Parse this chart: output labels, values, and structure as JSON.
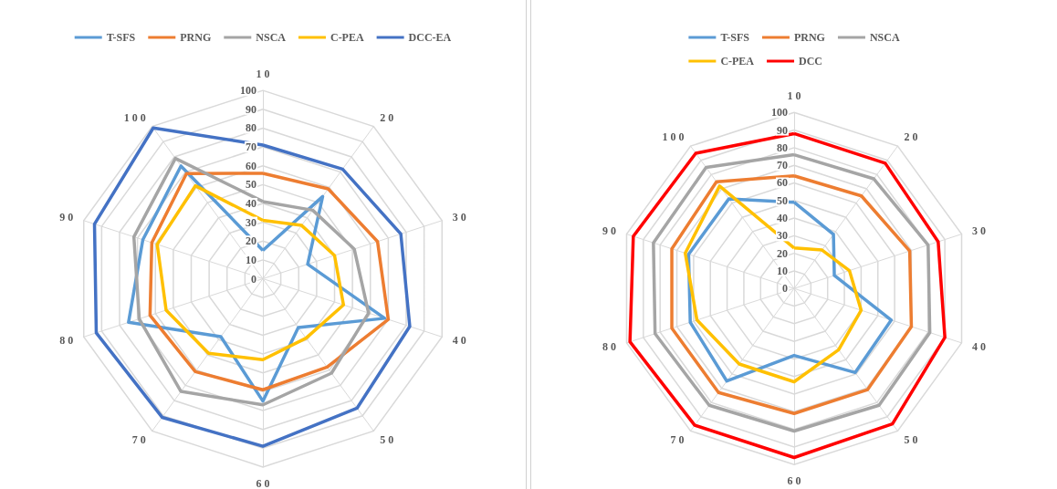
{
  "chart_data": [
    {
      "type": "radar",
      "categories": [
        "1 0",
        "2 0",
        "3 0",
        "4 0",
        "5 0",
        "6 0",
        "7 0",
        "8 0",
        "9 0",
        "1 0 0"
      ],
      "ylim": [
        0,
        100
      ],
      "yticks": [
        0,
        10,
        20,
        30,
        40,
        50,
        60,
        70,
        80,
        90,
        100
      ],
      "grid": true,
      "legend": "top",
      "marker": "none",
      "series": [
        {
          "name": "T-SFS",
          "color": "#5b9bd5",
          "values": [
            15,
            54,
            25,
            68,
            32,
            65,
            38,
            75,
            67,
            74
          ]
        },
        {
          "name": "PRNG",
          "color": "#ed7d31",
          "values": [
            56,
            59,
            64,
            70,
            58,
            59,
            61,
            63,
            62,
            69
          ]
        },
        {
          "name": "NSCA",
          "color": "#a5a5a5",
          "values": [
            41,
            45,
            51,
            59,
            62,
            67,
            74,
            69,
            72,
            79
          ]
        },
        {
          "name": "C-PEA",
          "color": "#ffc000",
          "values": [
            31,
            35,
            40,
            45,
            39,
            43,
            49,
            54,
            59,
            61
          ]
        },
        {
          "name": "DCC-EA",
          "color": "#4472c4",
          "values": [
            71,
            72,
            77,
            82,
            85,
            89,
            91,
            93,
            94,
            99
          ]
        }
      ]
    },
    {
      "type": "radar",
      "categories": [
        "1 0",
        "2 0",
        "3 0",
        "4 0",
        "5 0",
        "6 0",
        "7 0",
        "8 0",
        "9 0",
        "1 0 0"
      ],
      "ylim": [
        0,
        100
      ],
      "yticks": [
        0,
        10,
        20,
        30,
        40,
        50,
        60,
        70,
        80,
        90,
        100
      ],
      "grid": true,
      "legend": "top",
      "marker": "none",
      "series": [
        {
          "name": "T-SFS",
          "color": "#5b9bd5",
          "values": [
            49,
            38,
            24,
            58,
            59,
            38,
            65,
            62,
            63,
            63
          ]
        },
        {
          "name": "PRNG",
          "color": "#ed7d31",
          "values": [
            64,
            65,
            69,
            70,
            71,
            71,
            73,
            73,
            73,
            75
          ]
        },
        {
          "name": "NSCA",
          "color": "#a5a5a5",
          "values": [
            76,
            77,
            80,
            81,
            82,
            81,
            82,
            83,
            84,
            85
          ]
        },
        {
          "name": "C-PEA",
          "color": "#ffc000",
          "values": [
            23,
            27,
            33,
            40,
            43,
            53,
            53,
            58,
            65,
            72
          ]
        },
        {
          "name": "DCC",
          "color": "#ff0000",
          "values": [
            88,
            88,
            86,
            90,
            95,
            96,
            96,
            98,
            96,
            95
          ]
        }
      ]
    }
  ]
}
